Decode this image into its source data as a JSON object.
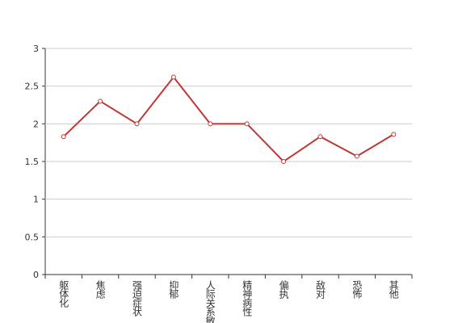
{
  "chart_data": {
    "type": "line",
    "categories": [
      "躯体化",
      "焦虑",
      "强迫症状",
      "抑郁",
      "人际关系敏感",
      "精神病性",
      "偏执",
      "敌对",
      "恐怖",
      "其他"
    ],
    "values": [
      1.83,
      2.3,
      2.0,
      2.62,
      2.0,
      2.0,
      1.5,
      1.83,
      1.57,
      1.86
    ],
    "color": "#c23531",
    "ylim": [
      0,
      3
    ],
    "yticks": [
      0,
      0.5,
      1,
      1.5,
      2,
      2.5,
      3
    ],
    "grid": true
  }
}
